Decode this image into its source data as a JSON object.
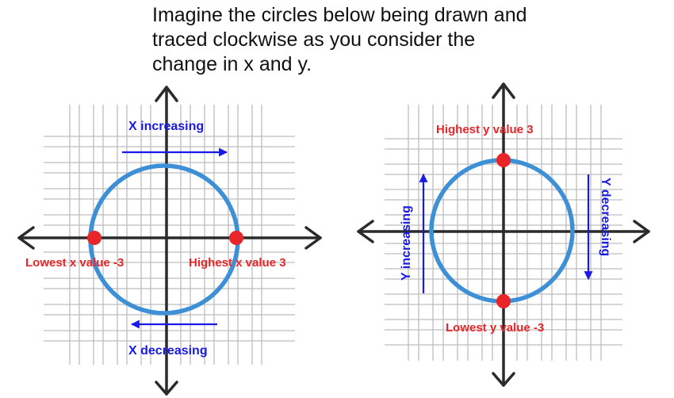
{
  "intro_text": {
    "line1": "Imagine the circles below being drawn and",
    "line2": "traced clockwise as you consider the",
    "line3": "change in x and y."
  },
  "left_diagram": {
    "top_arrow_label": "X increasing",
    "bottom_arrow_label": "X decreasing",
    "left_point_label": "Lowest x value -3",
    "right_point_label": "Highest x value 3"
  },
  "right_diagram": {
    "top_point_label": "Highest y value 3",
    "bottom_point_label": "Lowest y value -3",
    "left_arrow_label": "Y increasing",
    "right_arrow_label": "Y decreasing"
  },
  "colors": {
    "circle": "#3d8fd6",
    "point": "#e8262a",
    "label_red": "#e8262a",
    "arrow_blue": "#1a1ae6",
    "axis": "#2b2b2b",
    "grid": "#bdbdbd"
  }
}
